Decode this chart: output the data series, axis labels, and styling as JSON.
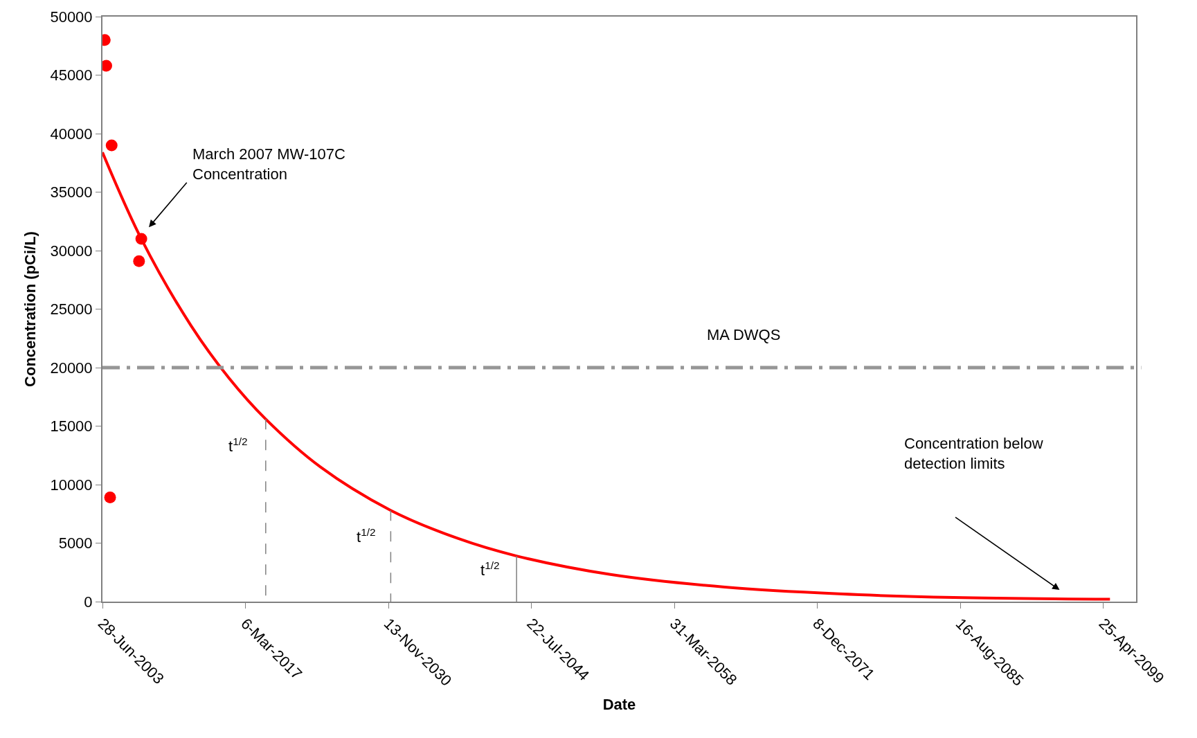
{
  "chart_data": {
    "type": "line",
    "xlabel": "Date",
    "ylabel": "Concentration (pCi/L)",
    "series": [
      {
        "type": "scatter",
        "color": "#ff0000",
        "marker": "circle",
        "x": [
          "2003-09-16",
          "2003-11-08",
          "2004-05-14",
          "2004-03-21",
          "2006-12-28",
          "2007-03-18"
        ],
        "values": [
          48000,
          45800,
          39000,
          8900,
          29100,
          31000
        ]
      },
      {
        "color": "#ff0000",
        "line_style": "solid",
        "x": [
          "2003-06-28",
          "2007-03-18",
          "2011-12-16",
          "2015-08-11",
          "2019-02-13",
          "2024-05-15",
          "2031-02-02",
          "2037-07-08",
          "2043-02-20",
          "2052-02-14",
          "2063-01-26",
          "2074-01-11",
          "2084-12-24",
          "2099-12-14"
        ],
        "values": [
          38400,
          31000,
          23600,
          19100,
          15600,
          11500,
          7800,
          5400,
          3900,
          2320,
          1240,
          660,
          350,
          200
        ]
      },
      {
        "color": "#808080",
        "line_style": "dashed",
        "x": [
          "2019-02-13",
          "2019-02-13"
        ],
        "values": [
          15600,
          0
        ]
      },
      {
        "color": "#808080",
        "line_style": "dashed",
        "x": [
          "2031-02-02",
          "2031-02-02"
        ],
        "values": [
          7800,
          0
        ]
      },
      {
        "color": "#808080",
        "line_style": "solid",
        "x": [
          "2043-02-20",
          "2043-02-20"
        ],
        "values": [
          3900,
          0
        ]
      }
    ],
    "ref_lines": [
      {
        "axis": "y",
        "value": 20000,
        "label": "MA DWQS",
        "color": "#969696",
        "line_style": "dashdot"
      }
    ],
    "annotations": [
      "March 2007 MW-107C\nConcentration",
      "Concentration below\ndetection limits",
      "t$^{1/2}$",
      "t$^{1/2}$",
      "t$^{1/2}$"
    ],
    "xlim": [
      "2003-06-28",
      "2102-06-15"
    ],
    "xticks": [
      {
        "value": "2003-06-28",
        "label": "28-Jun-2003"
      },
      {
        "value": "2017-03-06",
        "label": "6-Mar-2017"
      },
      {
        "value": "2030-11-13",
        "label": "13-Nov-2030"
      },
      {
        "value": "2044-07-22",
        "label": "22-Jul-2044"
      },
      {
        "value": "2058-03-31",
        "label": "31-Mar-2058"
      },
      {
        "value": "2071-12-08",
        "label": "8-Dec-2071"
      },
      {
        "value": "2085-08-16",
        "label": "16-Aug-2085"
      },
      {
        "value": "2099-04-25",
        "label": "25-Apr-2099"
      }
    ],
    "ylim": [
      0,
      50000
    ],
    "yticks": [
      0,
      5000,
      10000,
      15000,
      20000,
      25000,
      30000,
      35000,
      40000,
      45000,
      50000
    ]
  }
}
